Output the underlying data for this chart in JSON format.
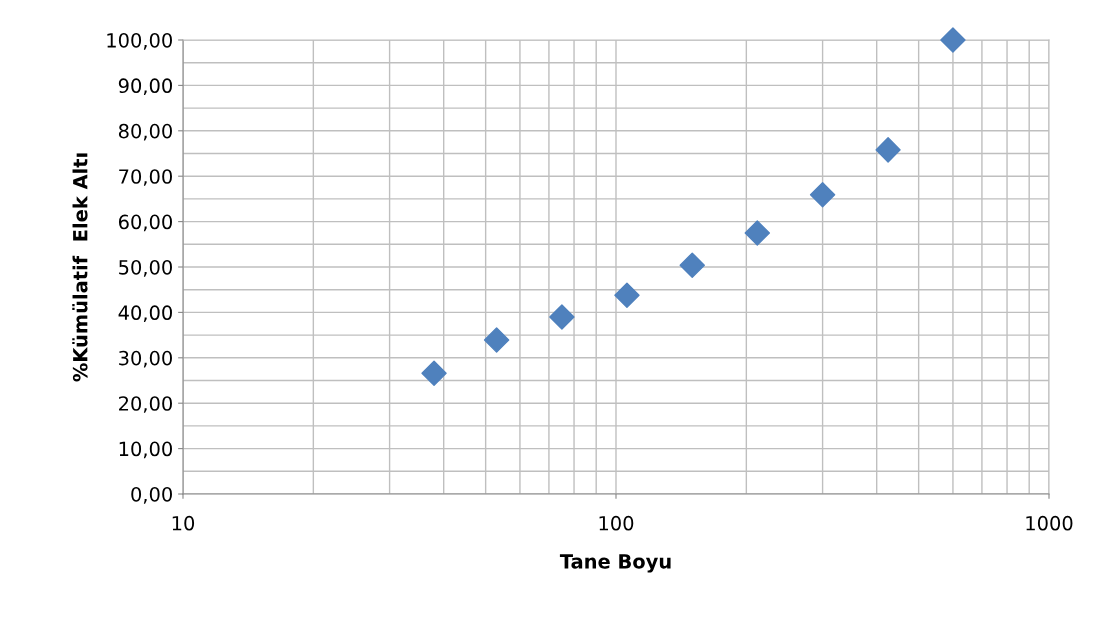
{
  "chart_data": {
    "type": "scatter",
    "xlabel": "Tane Boyu",
    "ylabel": "%Kümülatif  Elek Altı",
    "x": [
      38,
      53,
      75,
      106,
      150,
      212,
      300,
      425,
      600
    ],
    "values": [
      26.6,
      33.9,
      39.0,
      43.8,
      50.4,
      57.5,
      65.9,
      75.8,
      100.0
    ],
    "color": "#4f81bd",
    "marker": "diamond",
    "log": "x",
    "grid": true,
    "legend": false,
    "xlim": [
      10,
      1000
    ],
    "xticks": [
      10,
      100,
      1000
    ],
    "ylim": [
      0,
      100
    ],
    "yticks": [
      {
        "value": 0,
        "label": "0,00"
      },
      {
        "value": 10,
        "label": "10,00"
      },
      {
        "value": 20,
        "label": "20,00"
      },
      {
        "value": 30,
        "label": "30,00"
      },
      {
        "value": 40,
        "label": "40,00"
      },
      {
        "value": 50,
        "label": "50,00"
      },
      {
        "value": 60,
        "label": "60,00"
      },
      {
        "value": 70,
        "label": "70,00"
      },
      {
        "value": 80,
        "label": "80,00"
      },
      {
        "value": 90,
        "label": "90,00"
      },
      {
        "value": 100,
        "label": "100,00"
      }
    ]
  }
}
